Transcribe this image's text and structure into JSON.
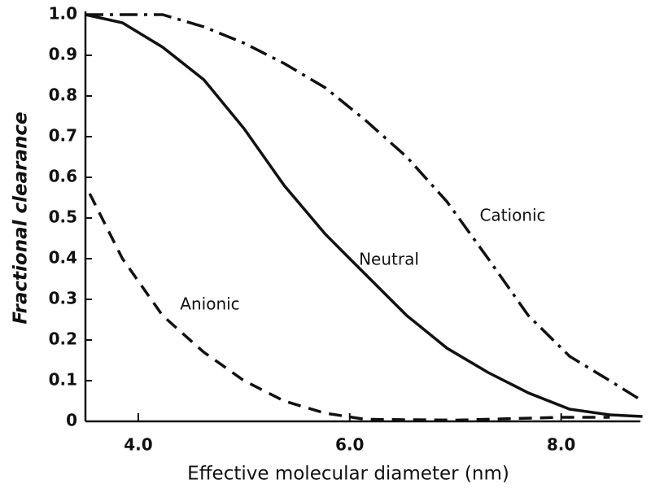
{
  "chart_data": {
    "type": "line",
    "xlabel": "Effective molecular diameter (nm)",
    "ylabel": "Fractional clearance",
    "xlim": [
      3.5,
      8.75
    ],
    "ylim": [
      0,
      1.0
    ],
    "xticks": [
      {
        "value": 4,
        "label": "4.0"
      },
      {
        "value": 6,
        "label": "6.0"
      },
      {
        "value": 8,
        "label": "8.0"
      }
    ],
    "yticks": [
      0,
      0.1,
      0.2,
      0.3,
      0.4,
      0.5,
      0.6,
      0.7,
      0.8,
      0.9,
      {
        "value": 1,
        "label": "1.0"
      }
    ],
    "series": [
      {
        "name": "Cationic",
        "color": "#111111",
        "line_style": "dash-dot",
        "x": [
          3.5,
          4.23,
          4.62,
          5.0,
          5.38,
          5.77,
          6.15,
          6.54,
          6.92,
          7.31,
          7.69,
          8.08,
          8.46,
          8.77
        ],
        "values": [
          1.0,
          1.0,
          0.97,
          0.93,
          0.88,
          0.82,
          0.74,
          0.65,
          0.54,
          0.4,
          0.26,
          0.16,
          0.1,
          0.05
        ]
      },
      {
        "name": "Neutral",
        "color": "#111111",
        "line_style": "solid",
        "x": [
          3.5,
          3.85,
          4.23,
          4.62,
          5.0,
          5.38,
          5.77,
          6.0,
          6.54,
          6.92,
          7.31,
          7.69,
          8.08,
          8.46,
          8.77
        ],
        "values": [
          1.0,
          0.98,
          0.92,
          0.84,
          0.72,
          0.58,
          0.46,
          0.4,
          0.26,
          0.18,
          0.12,
          0.07,
          0.03,
          0.016,
          0.012
        ]
      },
      {
        "name": "Anionic",
        "color": "#111111",
        "line_style": "dashed",
        "x": [
          3.54,
          3.85,
          4.23,
          4.62,
          5.0,
          5.38,
          5.77,
          6.15,
          7.0,
          8.0,
          8.46
        ],
        "values": [
          0.56,
          0.4,
          0.26,
          0.17,
          0.1,
          0.05,
          0.02,
          0.005,
          0.003,
          0.01,
          0.01
        ]
      }
    ]
  }
}
